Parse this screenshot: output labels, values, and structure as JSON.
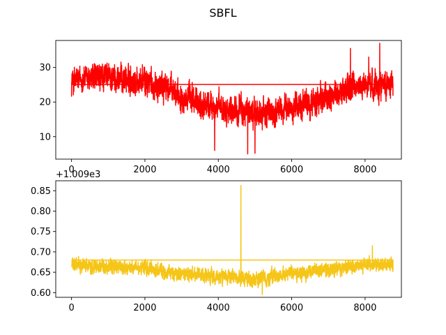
{
  "figure_title": "SBFL",
  "chart_data": [
    {
      "type": "line",
      "color": "#ff0000",
      "xlim": [
        -430,
        8990
      ],
      "ylim": [
        3.5,
        37.8
      ],
      "x_ticks": [
        0,
        2000,
        4000,
        6000,
        8000
      ],
      "x_tick_labels": [
        "0",
        "2000",
        "4000",
        "6000",
        "8000"
      ],
      "y_ticks": [
        10,
        20,
        30
      ],
      "y_tick_labels": [
        "10",
        "20",
        "30"
      ],
      "offset_label": "",
      "x_max": 8760,
      "trend": [
        [
          0,
          26
        ],
        [
          500,
          27
        ],
        [
          1000,
          27
        ],
        [
          1500,
          26.5
        ],
        [
          2000,
          26
        ],
        [
          2500,
          24.5
        ],
        [
          3000,
          22
        ],
        [
          3500,
          19.5
        ],
        [
          4000,
          18.5
        ],
        [
          4500,
          18
        ],
        [
          5000,
          16.5
        ],
        [
          5500,
          17
        ],
        [
          6000,
          18.5
        ],
        [
          6500,
          19.5
        ],
        [
          7000,
          21.5
        ],
        [
          7500,
          23.5
        ],
        [
          8000,
          25
        ],
        [
          8760,
          25.5
        ]
      ],
      "noise_amplitude": 4.2,
      "spikes": [
        [
          7600,
          35.5
        ],
        [
          8400,
          37
        ],
        [
          4800,
          5
        ],
        [
          5000,
          5.2
        ],
        [
          3900,
          6
        ],
        [
          8100,
          33
        ]
      ],
      "return_line": {
        "x": [
          8760,
          0
        ],
        "y": [
          25.1,
          25.1
        ]
      },
      "y_min_clip": 4.5,
      "y_max_clip": 37.2
    },
    {
      "type": "line",
      "color": "#f5c518",
      "xlim": [
        -430,
        8990
      ],
      "ylim": [
        0.5885,
        0.8745
      ],
      "x_ticks": [
        0,
        2000,
        4000,
        6000,
        8000
      ],
      "x_tick_labels": [
        "0",
        "2000",
        "4000",
        "6000",
        "8000"
      ],
      "y_ticks": [
        0.6,
        0.65,
        0.7,
        0.75,
        0.8,
        0.85
      ],
      "y_tick_labels": [
        "0.60",
        "0.65",
        "0.70",
        "0.75",
        "0.80",
        "0.85"
      ],
      "offset_label": "+1.009e3",
      "x_max": 8760,
      "trend": [
        [
          0,
          0.668
        ],
        [
          1000,
          0.665
        ],
        [
          2000,
          0.658
        ],
        [
          3000,
          0.645
        ],
        [
          4000,
          0.638
        ],
        [
          5000,
          0.632
        ],
        [
          6000,
          0.648
        ],
        [
          7000,
          0.655
        ],
        [
          8000,
          0.67
        ],
        [
          8760,
          0.668
        ]
      ],
      "noise_amplitude": 0.018,
      "spikes": [
        [
          4615,
          0.863
        ],
        [
          8200,
          0.715
        ],
        [
          5200,
          0.595
        ]
      ],
      "return_line": {
        "x": [
          8760,
          0
        ],
        "y": [
          0.68,
          0.68
        ]
      },
      "y_min_clip": 0.59,
      "y_max_clip": 0.865
    }
  ]
}
